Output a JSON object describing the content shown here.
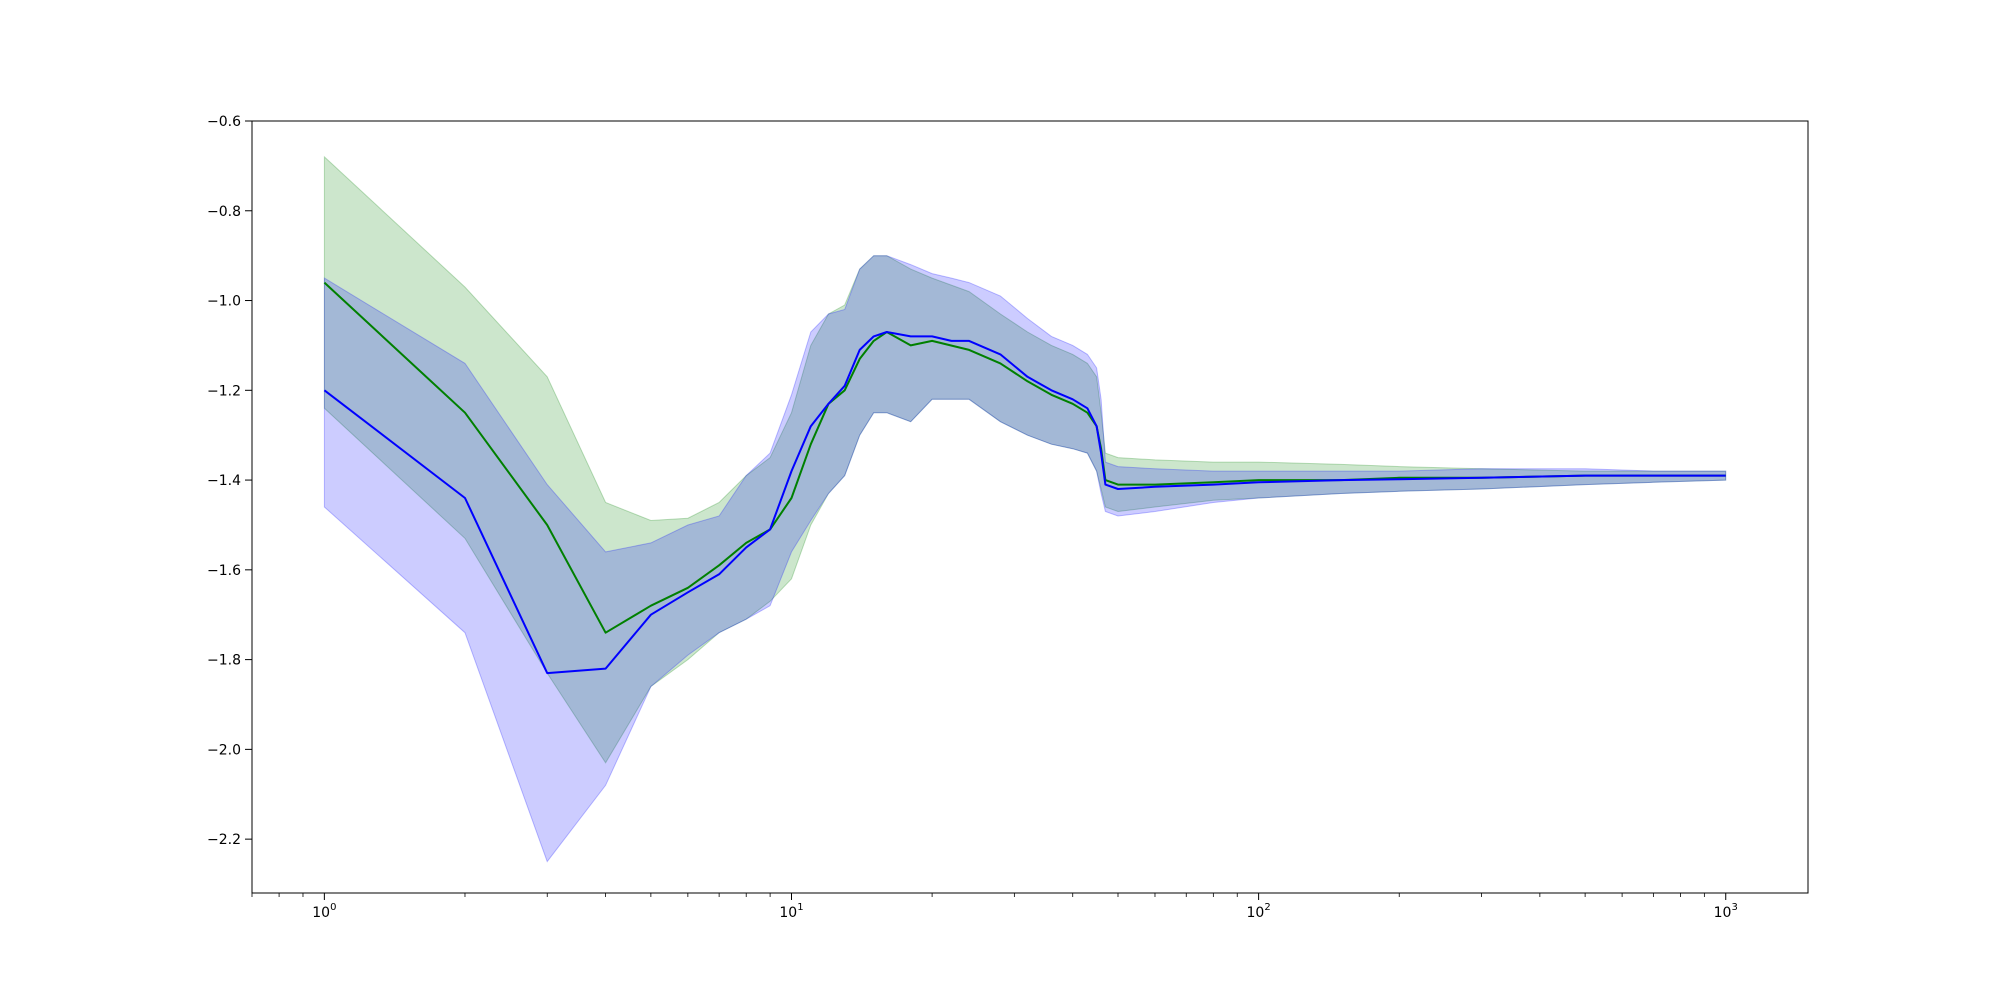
{
  "chart_data": {
    "type": "line",
    "title": "",
    "xlabel": "",
    "ylabel": "",
    "x_scale": "log",
    "xlim": [
      0.7,
      1500
    ],
    "ylim": [
      -2.32,
      -0.6
    ],
    "grid": false,
    "legend": "none",
    "x_ticks": [
      {
        "value": 1,
        "base": "10",
        "exp": "0"
      },
      {
        "value": 10,
        "base": "10",
        "exp": "1"
      },
      {
        "value": 100,
        "base": "10",
        "exp": "2"
      },
      {
        "value": 1000,
        "base": "10",
        "exp": "3"
      }
    ],
    "y_ticks": [
      {
        "value": -0.6,
        "label": "−0.6"
      },
      {
        "value": -0.8,
        "label": "−0.8"
      },
      {
        "value": -1.0,
        "label": "−1.0"
      },
      {
        "value": -1.2,
        "label": "−1.2"
      },
      {
        "value": -1.4,
        "label": "−1.4"
      },
      {
        "value": -1.6,
        "label": "−1.6"
      },
      {
        "value": -1.8,
        "label": "−1.8"
      },
      {
        "value": -2.0,
        "label": "−2.0"
      },
      {
        "value": -2.2,
        "label": "−2.2"
      }
    ],
    "series": [
      {
        "color": "#008000",
        "band_color": "#008000",
        "x": [
          1,
          2,
          3,
          4,
          5,
          6,
          7,
          8,
          9,
          10,
          11,
          12,
          13,
          14,
          15,
          16,
          18,
          20,
          24,
          28,
          32,
          36,
          40,
          43,
          45,
          46,
          47,
          50,
          60,
          80,
          100,
          150,
          200,
          300,
          500,
          700,
          1000
        ],
        "y": [
          -0.96,
          -1.25,
          -1.5,
          -1.74,
          -1.68,
          -1.64,
          -1.59,
          -1.54,
          -1.51,
          -1.44,
          -1.32,
          -1.23,
          -1.2,
          -1.13,
          -1.09,
          -1.07,
          -1.1,
          -1.09,
          -1.11,
          -1.14,
          -1.18,
          -1.21,
          -1.23,
          -1.25,
          -1.28,
          -1.33,
          -1.4,
          -1.41,
          -1.41,
          -1.405,
          -1.4,
          -1.4,
          -1.395,
          -1.395,
          -1.39,
          -1.39,
          -1.39
        ],
        "upper": [
          -0.68,
          -0.97,
          -1.17,
          -1.45,
          -1.49,
          -1.485,
          -1.45,
          -1.39,
          -1.35,
          -1.25,
          -1.1,
          -1.03,
          -1.01,
          -0.93,
          -0.9,
          -0.9,
          -0.93,
          -0.95,
          -0.98,
          -1.03,
          -1.07,
          -1.1,
          -1.12,
          -1.14,
          -1.17,
          -1.25,
          -1.34,
          -1.35,
          -1.355,
          -1.36,
          -1.36,
          -1.365,
          -1.37,
          -1.375,
          -1.38,
          -1.38,
          -1.38
        ],
        "lower": [
          -1.24,
          -1.53,
          -1.83,
          -2.03,
          -1.86,
          -1.8,
          -1.74,
          -1.71,
          -1.67,
          -1.62,
          -1.5,
          -1.43,
          -1.39,
          -1.3,
          -1.25,
          -1.25,
          -1.27,
          -1.22,
          -1.22,
          -1.27,
          -1.3,
          -1.32,
          -1.33,
          -1.34,
          -1.38,
          -1.42,
          -1.46,
          -1.47,
          -1.46,
          -1.445,
          -1.44,
          -1.43,
          -1.425,
          -1.42,
          -1.41,
          -1.405,
          -1.4
        ]
      },
      {
        "color": "#0000ff",
        "band_color": "#0000ff",
        "x": [
          1,
          2,
          3,
          4,
          5,
          6,
          7,
          8,
          9,
          10,
          11,
          12,
          13,
          14,
          15,
          16,
          18,
          20,
          22,
          24,
          28,
          32,
          36,
          40,
          43,
          45,
          46,
          47,
          50,
          60,
          80,
          100,
          150,
          200,
          300,
          500,
          700,
          1000
        ],
        "y": [
          -1.2,
          -1.44,
          -1.83,
          -1.82,
          -1.7,
          -1.65,
          -1.61,
          -1.55,
          -1.51,
          -1.38,
          -1.28,
          -1.23,
          -1.19,
          -1.11,
          -1.08,
          -1.07,
          -1.08,
          -1.08,
          -1.09,
          -1.09,
          -1.12,
          -1.17,
          -1.2,
          -1.22,
          -1.24,
          -1.28,
          -1.34,
          -1.41,
          -1.42,
          -1.415,
          -1.41,
          -1.405,
          -1.4,
          -1.398,
          -1.395,
          -1.39,
          -1.39,
          -1.39
        ],
        "upper": [
          -0.95,
          -1.14,
          -1.41,
          -1.56,
          -1.54,
          -1.5,
          -1.48,
          -1.39,
          -1.34,
          -1.21,
          -1.07,
          -1.03,
          -1.02,
          -0.93,
          -0.9,
          -0.9,
          -0.92,
          -0.94,
          -0.95,
          -0.96,
          -0.99,
          -1.04,
          -1.08,
          -1.1,
          -1.12,
          -1.15,
          -1.22,
          -1.36,
          -1.37,
          -1.375,
          -1.38,
          -1.38,
          -1.38,
          -1.38,
          -1.375,
          -1.375,
          -1.38,
          -1.38
        ],
        "lower": [
          -1.46,
          -1.74,
          -2.25,
          -2.08,
          -1.86,
          -1.79,
          -1.74,
          -1.71,
          -1.68,
          -1.56,
          -1.49,
          -1.43,
          -1.39,
          -1.3,
          -1.25,
          -1.25,
          -1.27,
          -1.22,
          -1.22,
          -1.22,
          -1.27,
          -1.3,
          -1.32,
          -1.33,
          -1.34,
          -1.38,
          -1.43,
          -1.47,
          -1.48,
          -1.47,
          -1.45,
          -1.44,
          -1.43,
          -1.425,
          -1.42,
          -1.41,
          -1.405,
          -1.4
        ]
      }
    ]
  }
}
